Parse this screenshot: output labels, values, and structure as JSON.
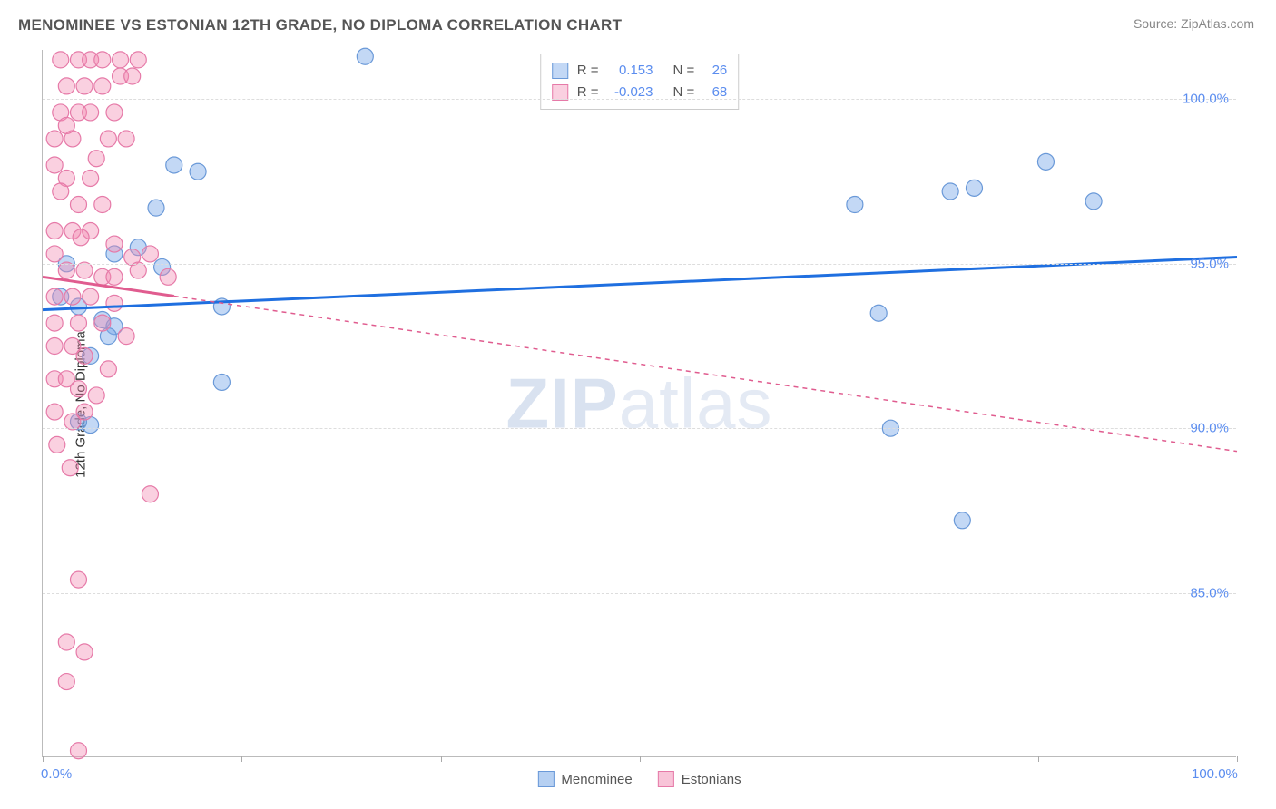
{
  "title": "MENOMINEE VS ESTONIAN 12TH GRADE, NO DIPLOMA CORRELATION CHART",
  "source": "Source: ZipAtlas.com",
  "y_axis_label": "12th Grade, No Diploma",
  "watermark": {
    "bold": "ZIP",
    "rest": "atlas"
  },
  "chart": {
    "type": "scatter",
    "background_color": "#ffffff",
    "grid_color": "#dddddd",
    "axis_color": "#bbbbbb",
    "xlim": [
      0,
      100
    ],
    "ylim": [
      80,
      101.5
    ],
    "x_ticks": [
      0,
      16.67,
      33.33,
      50,
      66.67,
      83.33,
      100
    ],
    "x_tick_labels": {
      "0": "0.0%",
      "100": "100.0%"
    },
    "y_ticks": [
      85,
      90,
      95,
      100
    ],
    "y_tick_labels": [
      "85.0%",
      "90.0%",
      "95.0%",
      "100.0%"
    ],
    "x_label_color": "#5b8def",
    "y_label_color": "#5b8def",
    "series": [
      {
        "name": "Menominee",
        "color_fill": "rgba(122,169,232,0.45)",
        "color_stroke": "#6a99d8",
        "marker_radius": 9,
        "trend": {
          "x1": 0,
          "y1": 93.6,
          "x2": 100,
          "y2": 95.2,
          "color": "#1f6fe0",
          "width": 3,
          "dash": "none"
        },
        "r_value": "0.153",
        "n_value": "26",
        "points": [
          [
            27,
            101.3
          ],
          [
            11,
            98.0
          ],
          [
            13,
            97.8
          ],
          [
            6,
            95.3
          ],
          [
            8,
            95.5
          ],
          [
            10,
            94.9
          ],
          [
            3,
            93.7
          ],
          [
            5,
            93.3
          ],
          [
            6,
            93.1
          ],
          [
            4,
            92.2
          ],
          [
            4,
            90.1
          ],
          [
            15,
            93.7
          ],
          [
            15,
            91.4
          ],
          [
            1.5,
            94.0
          ],
          [
            9.5,
            96.7
          ],
          [
            68,
            96.8
          ],
          [
            70,
            93.5
          ],
          [
            71,
            90.0
          ],
          [
            77,
            87.2
          ],
          [
            78,
            97.3
          ],
          [
            84,
            98.1
          ],
          [
            88,
            96.9
          ],
          [
            76,
            97.2
          ],
          [
            3,
            90.2
          ],
          [
            5.5,
            92.8
          ],
          [
            2,
            95.0
          ]
        ]
      },
      {
        "name": "Estonians",
        "color_fill": "rgba(242,138,178,0.40)",
        "color_stroke": "#e67aa8",
        "marker_radius": 9,
        "trend": {
          "x1": 0,
          "y1": 94.6,
          "x2": 100,
          "y2": 89.3,
          "color": "#e05c8f",
          "width": 1.5,
          "dash": "5,5",
          "solid_until_x": 11
        },
        "r_value": "-0.023",
        "n_value": "68",
        "points": [
          [
            1.5,
            101.2
          ],
          [
            3,
            101.2
          ],
          [
            4,
            101.2
          ],
          [
            5,
            101.2
          ],
          [
            6.5,
            101.2
          ],
          [
            8,
            101.2
          ],
          [
            2,
            100.4
          ],
          [
            3.5,
            100.4
          ],
          [
            5,
            100.4
          ],
          [
            6.5,
            100.7
          ],
          [
            7.5,
            100.7
          ],
          [
            1.5,
            99.6
          ],
          [
            3,
            99.6
          ],
          [
            4,
            99.6
          ],
          [
            6,
            99.6
          ],
          [
            1,
            98.8
          ],
          [
            2.5,
            98.8
          ],
          [
            5.5,
            98.8
          ],
          [
            7,
            98.8
          ],
          [
            1,
            98.0
          ],
          [
            2,
            97.6
          ],
          [
            4,
            97.6
          ],
          [
            3,
            96.8
          ],
          [
            5,
            96.8
          ],
          [
            1,
            96.0
          ],
          [
            2.5,
            96.0
          ],
          [
            4,
            96.0
          ],
          [
            6,
            95.6
          ],
          [
            7.5,
            95.2
          ],
          [
            9,
            95.3
          ],
          [
            1,
            95.3
          ],
          [
            2,
            94.8
          ],
          [
            3.5,
            94.8
          ],
          [
            5,
            94.6
          ],
          [
            6,
            94.6
          ],
          [
            8,
            94.8
          ],
          [
            1,
            94.0
          ],
          [
            2.5,
            94.0
          ],
          [
            4,
            94.0
          ],
          [
            1,
            93.2
          ],
          [
            3,
            93.2
          ],
          [
            5,
            93.2
          ],
          [
            1,
            92.5
          ],
          [
            2.5,
            92.5
          ],
          [
            3.5,
            92.2
          ],
          [
            1,
            91.5
          ],
          [
            2,
            91.5
          ],
          [
            3,
            91.2
          ],
          [
            4.5,
            91.0
          ],
          [
            1,
            90.5
          ],
          [
            2.5,
            90.2
          ],
          [
            3.5,
            90.5
          ],
          [
            9,
            88.0
          ],
          [
            3,
            85.4
          ],
          [
            2,
            83.5
          ],
          [
            3.5,
            83.2
          ],
          [
            2,
            82.3
          ],
          [
            3,
            80.2
          ],
          [
            10.5,
            94.6
          ],
          [
            1.5,
            97.2
          ],
          [
            4.5,
            98.2
          ],
          [
            2,
            99.2
          ],
          [
            6,
            93.8
          ],
          [
            7,
            92.8
          ],
          [
            5.5,
            91.8
          ],
          [
            2.3,
            88.8
          ],
          [
            1.2,
            89.5
          ],
          [
            3.2,
            95.8
          ]
        ]
      }
    ],
    "legend_top": {
      "labels": {
        "r": "R =",
        "n": "N ="
      },
      "label_color": "#555555",
      "value_color": "#5b8def"
    },
    "legend_bottom": [
      {
        "label": "Menominee",
        "fill": "rgba(122,169,232,0.55)",
        "stroke": "#6a99d8"
      },
      {
        "label": "Estonians",
        "fill": "rgba(242,138,178,0.50)",
        "stroke": "#e67aa8"
      }
    ]
  }
}
